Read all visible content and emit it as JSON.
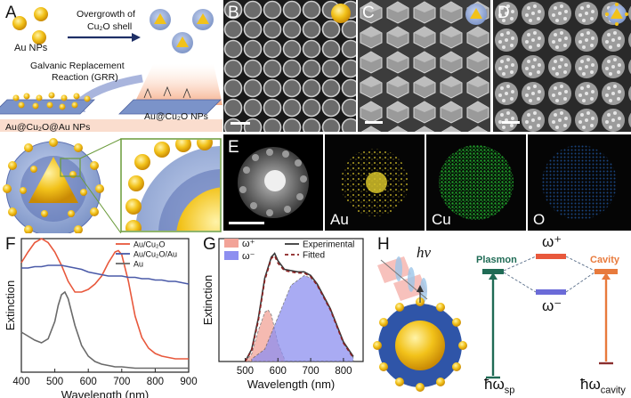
{
  "panels": {
    "A": {
      "label": "A",
      "au_nps": "Au NPs",
      "overgrowth_line1": "Overgrowth of",
      "overgrowth_line2": "Cu₂O shell",
      "grr_line1": "Galvanic Replacement",
      "grr_line2": "Reaction (GRR)",
      "au_cu2o_nps": "Au@Cu₂O NPs",
      "au_cu2o_au_nps": "Au@Cu₂O@Au NPs"
    },
    "B": {
      "label": "B"
    },
    "C": {
      "label": "C"
    },
    "D": {
      "label": "D"
    },
    "E": {
      "label": "E",
      "maps": [
        "Au",
        "Cu",
        "O"
      ]
    },
    "F": {
      "label": "F"
    },
    "G": {
      "label": "G"
    },
    "H": {
      "label": "H",
      "hv": "hν",
      "plasmon": "Plasmon",
      "cavity": "Cavity",
      "omega_plus": "ω⁺",
      "omega_minus": "ω⁻",
      "hbar_sp": "ħω",
      "sp_sub": "sp",
      "hbar_cavity": "ħω",
      "cavity_sub": "cavity"
    }
  },
  "colors": {
    "au_gold": "#f2c21a",
    "cu2o_shell": "#8fa8d6",
    "shell_dark": "#5b6fb0",
    "plasmon_green": "#1f6b55",
    "cavity_orange": "#e87a3c",
    "cu_map": "#1fa02a",
    "o_map": "#1b4a8a",
    "au_map": "#d6c22a"
  },
  "chart_data": [
    {
      "type": "line",
      "panel": "F",
      "xlabel": "Wavelength (nm)",
      "ylabel": "Extinction",
      "xlim": [
        400,
        900
      ],
      "ylim": [
        0,
        1
      ],
      "xticks": [
        "400",
        "500",
        "600",
        "700",
        "800",
        "900"
      ],
      "legend": "top-right",
      "series": [
        {
          "name": "Au/Cu₂O",
          "color": "#e8583c",
          "x": [
            400,
            420,
            440,
            460,
            480,
            500,
            520,
            540,
            560,
            580,
            600,
            620,
            640,
            660,
            680,
            690,
            700,
            720,
            740,
            760,
            780,
            800,
            820,
            840,
            860,
            880,
            900
          ],
          "y": [
            0.82,
            0.9,
            0.97,
            1.0,
            0.97,
            0.9,
            0.8,
            0.68,
            0.6,
            0.6,
            0.62,
            0.66,
            0.72,
            0.82,
            0.9,
            0.91,
            0.88,
            0.68,
            0.42,
            0.26,
            0.18,
            0.14,
            0.12,
            0.11,
            0.1,
            0.1,
            0.1
          ]
        },
        {
          "name": "Au/Cu₂O/Au",
          "color": "#4a5aa8",
          "x": [
            400,
            420,
            440,
            460,
            480,
            500,
            520,
            540,
            560,
            580,
            600,
            620,
            640,
            660,
            680,
            700,
            720,
            740,
            760,
            780,
            800,
            820,
            840,
            860,
            880,
            900
          ],
          "y": [
            0.78,
            0.78,
            0.79,
            0.79,
            0.8,
            0.8,
            0.8,
            0.79,
            0.78,
            0.77,
            0.75,
            0.74,
            0.73,
            0.72,
            0.72,
            0.72,
            0.71,
            0.71,
            0.7,
            0.7,
            0.69,
            0.69,
            0.68,
            0.68,
            0.67,
            0.66
          ]
        },
        {
          "name": "Au",
          "color": "#6a6a6a",
          "x": [
            400,
            420,
            440,
            460,
            480,
            500,
            510,
            520,
            530,
            540,
            560,
            580,
            600,
            620,
            640,
            660,
            680,
            700,
            740,
            780,
            820,
            860,
            900
          ],
          "y": [
            0.3,
            0.27,
            0.24,
            0.22,
            0.25,
            0.38,
            0.5,
            0.58,
            0.6,
            0.55,
            0.35,
            0.2,
            0.12,
            0.08,
            0.06,
            0.05,
            0.04,
            0.04,
            0.03,
            0.03,
            0.03,
            0.03,
            0.03
          ]
        }
      ]
    },
    {
      "type": "area",
      "panel": "G",
      "xlabel": "Wavelength (nm)",
      "ylabel": "Extinction",
      "xlim": [
        420,
        860
      ],
      "ylim": [
        0,
        1
      ],
      "xticks": [
        "500",
        "600",
        "700",
        "800"
      ],
      "legend": "top",
      "series": [
        {
          "name": "ω⁺",
          "kind": "fill",
          "color": "#f2a398",
          "x": [
            500,
            520,
            540,
            560,
            570,
            580,
            600,
            620
          ],
          "y": [
            0.0,
            0.06,
            0.25,
            0.4,
            0.42,
            0.38,
            0.15,
            0.02
          ]
        },
        {
          "name": "ω⁻",
          "kind": "fill",
          "color": "#8d8ff0",
          "x": [
            520,
            560,
            600,
            640,
            680,
            700,
            720,
            760,
            800,
            830
          ],
          "y": [
            0.02,
            0.1,
            0.36,
            0.62,
            0.7,
            0.68,
            0.62,
            0.42,
            0.15,
            0.03
          ]
        },
        {
          "name": "Experimental",
          "kind": "line",
          "color": "#3a3a3a",
          "x": [
            500,
            520,
            540,
            560,
            580,
            590,
            600,
            620,
            640,
            660,
            680,
            700,
            720,
            760,
            800,
            830
          ],
          "y": [
            0.0,
            0.1,
            0.35,
            0.68,
            0.85,
            0.88,
            0.82,
            0.75,
            0.74,
            0.73,
            0.73,
            0.7,
            0.63,
            0.43,
            0.16,
            0.04
          ]
        },
        {
          "name": "Fitted",
          "kind": "dashed",
          "color": "#8a2020",
          "x": [
            500,
            520,
            540,
            560,
            580,
            590,
            600,
            620,
            640,
            660,
            680,
            700,
            720,
            760,
            800,
            830
          ],
          "y": [
            0.0,
            0.09,
            0.33,
            0.66,
            0.84,
            0.86,
            0.8,
            0.74,
            0.73,
            0.72,
            0.72,
            0.69,
            0.62,
            0.42,
            0.15,
            0.03
          ]
        }
      ]
    }
  ]
}
